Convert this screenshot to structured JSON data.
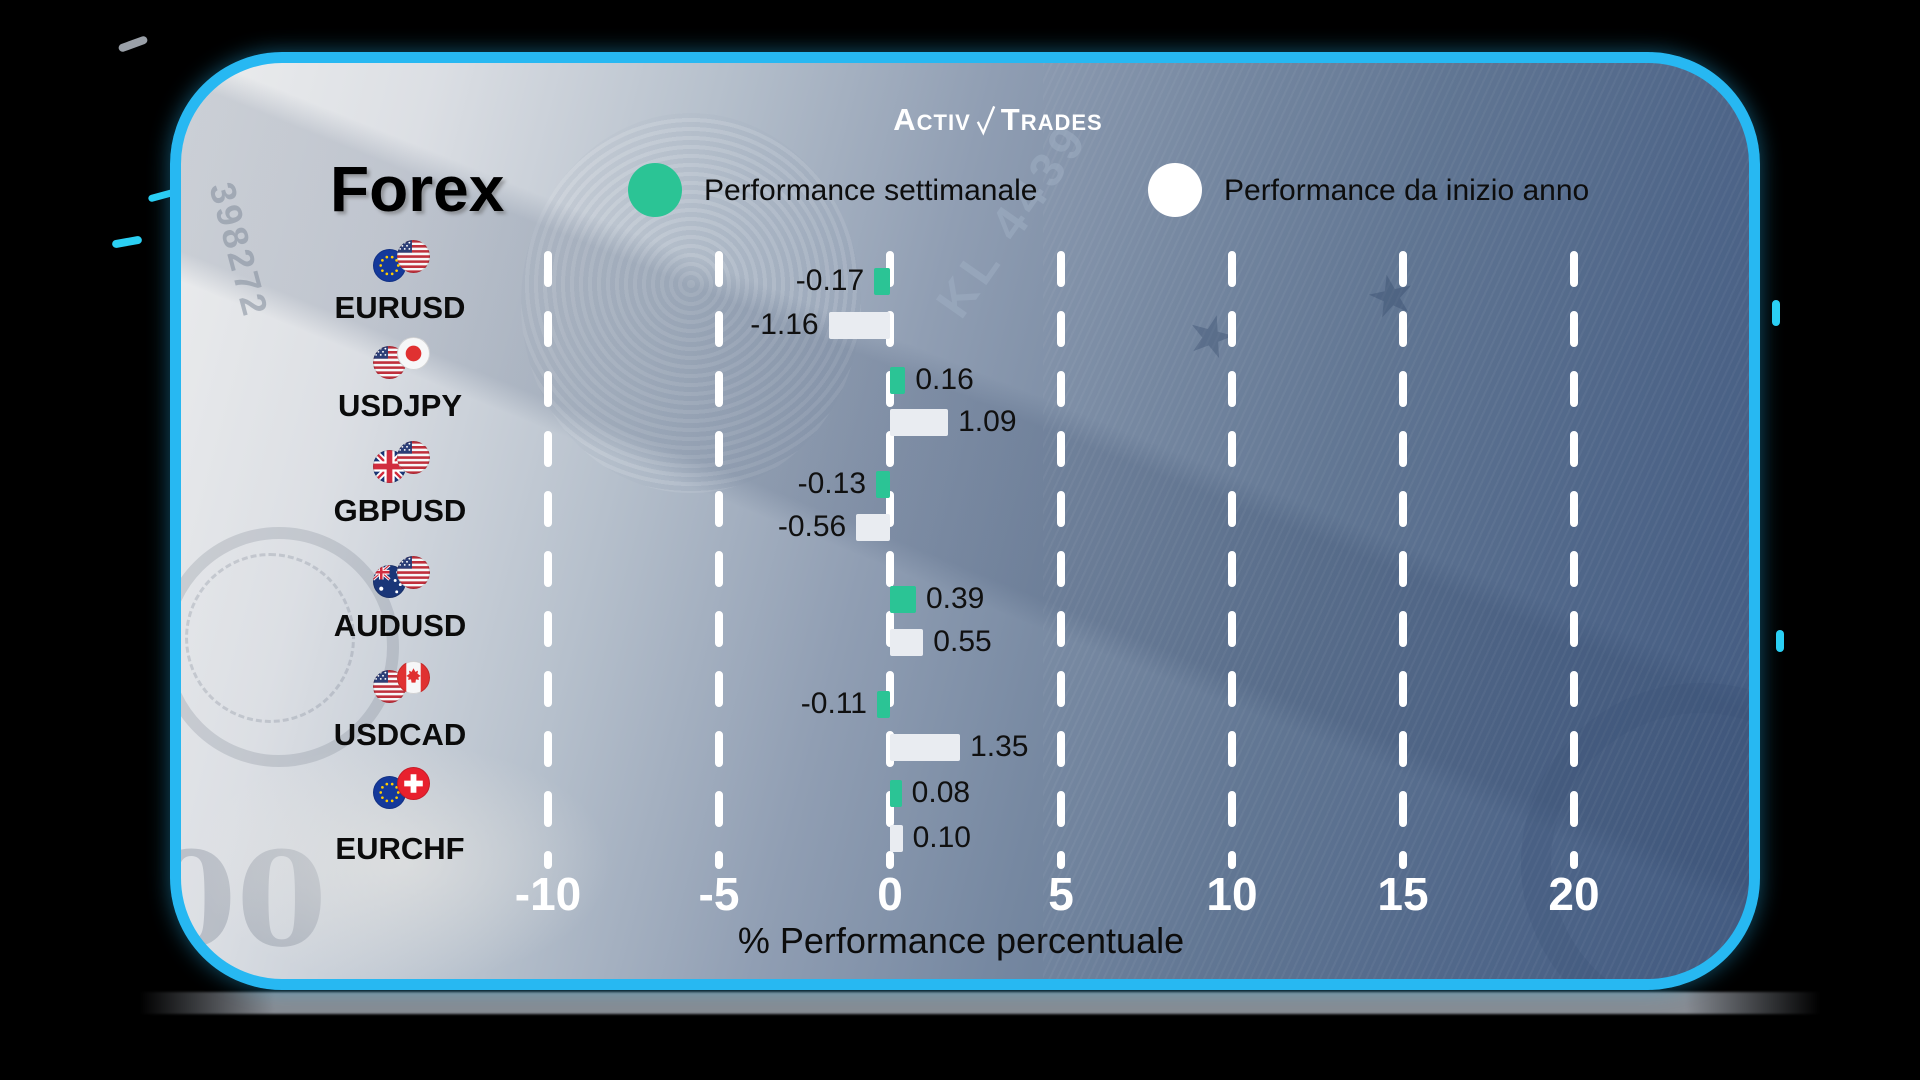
{
  "brand": {
    "logo_part1": "Activ",
    "logo_part2": "Trades"
  },
  "title": "Forex",
  "legend": [
    {
      "label": "Performance settimanale",
      "color": "#2bc495"
    },
    {
      "label": "Performance da inizio anno",
      "color": "#ffffff"
    }
  ],
  "colors": {
    "weekly_bar": "#2bc495",
    "ytd_bar": "#e9ecf1",
    "card_border": "#27b8f2",
    "axis_text": "#ffffff",
    "value_text": "#101010"
  },
  "chart_data": {
    "type": "bar",
    "orientation": "horizontal",
    "title": "Forex",
    "categories": [
      "EURUSD",
      "USDJPY",
      "GBPUSD",
      "AUDUSD",
      "USDCAD",
      "EURCHF"
    ],
    "flags": [
      [
        "eu",
        "us"
      ],
      [
        "us",
        "jp"
      ],
      [
        "gb",
        "us"
      ],
      [
        "au",
        "us"
      ],
      [
        "us",
        "ca"
      ],
      [
        "eu",
        "ch"
      ]
    ],
    "series": [
      {
        "name": "Performance settimanale",
        "color": "#2bc495",
        "values": [
          -0.17,
          0.16,
          -0.13,
          0.39,
          -0.11,
          0.08
        ]
      },
      {
        "name": "Performance da inizio anno",
        "color": "#e9ecf1",
        "values": [
          -1.16,
          1.09,
          -0.56,
          0.55,
          1.35,
          0.1
        ]
      }
    ],
    "xlabel": "% Performance percentuale",
    "x_ticks": [
      -10,
      -5,
      0,
      5,
      10,
      15,
      20
    ],
    "xlim": [
      -12.5,
      22.5
    ],
    "grid": "dashed-vertical-white",
    "legend_position": "top",
    "value_labels": true
  },
  "decor": {
    "serial_text": "398272",
    "plate_text": "KL 4439",
    "zeros_text": "00",
    "star_glyph": "★"
  }
}
